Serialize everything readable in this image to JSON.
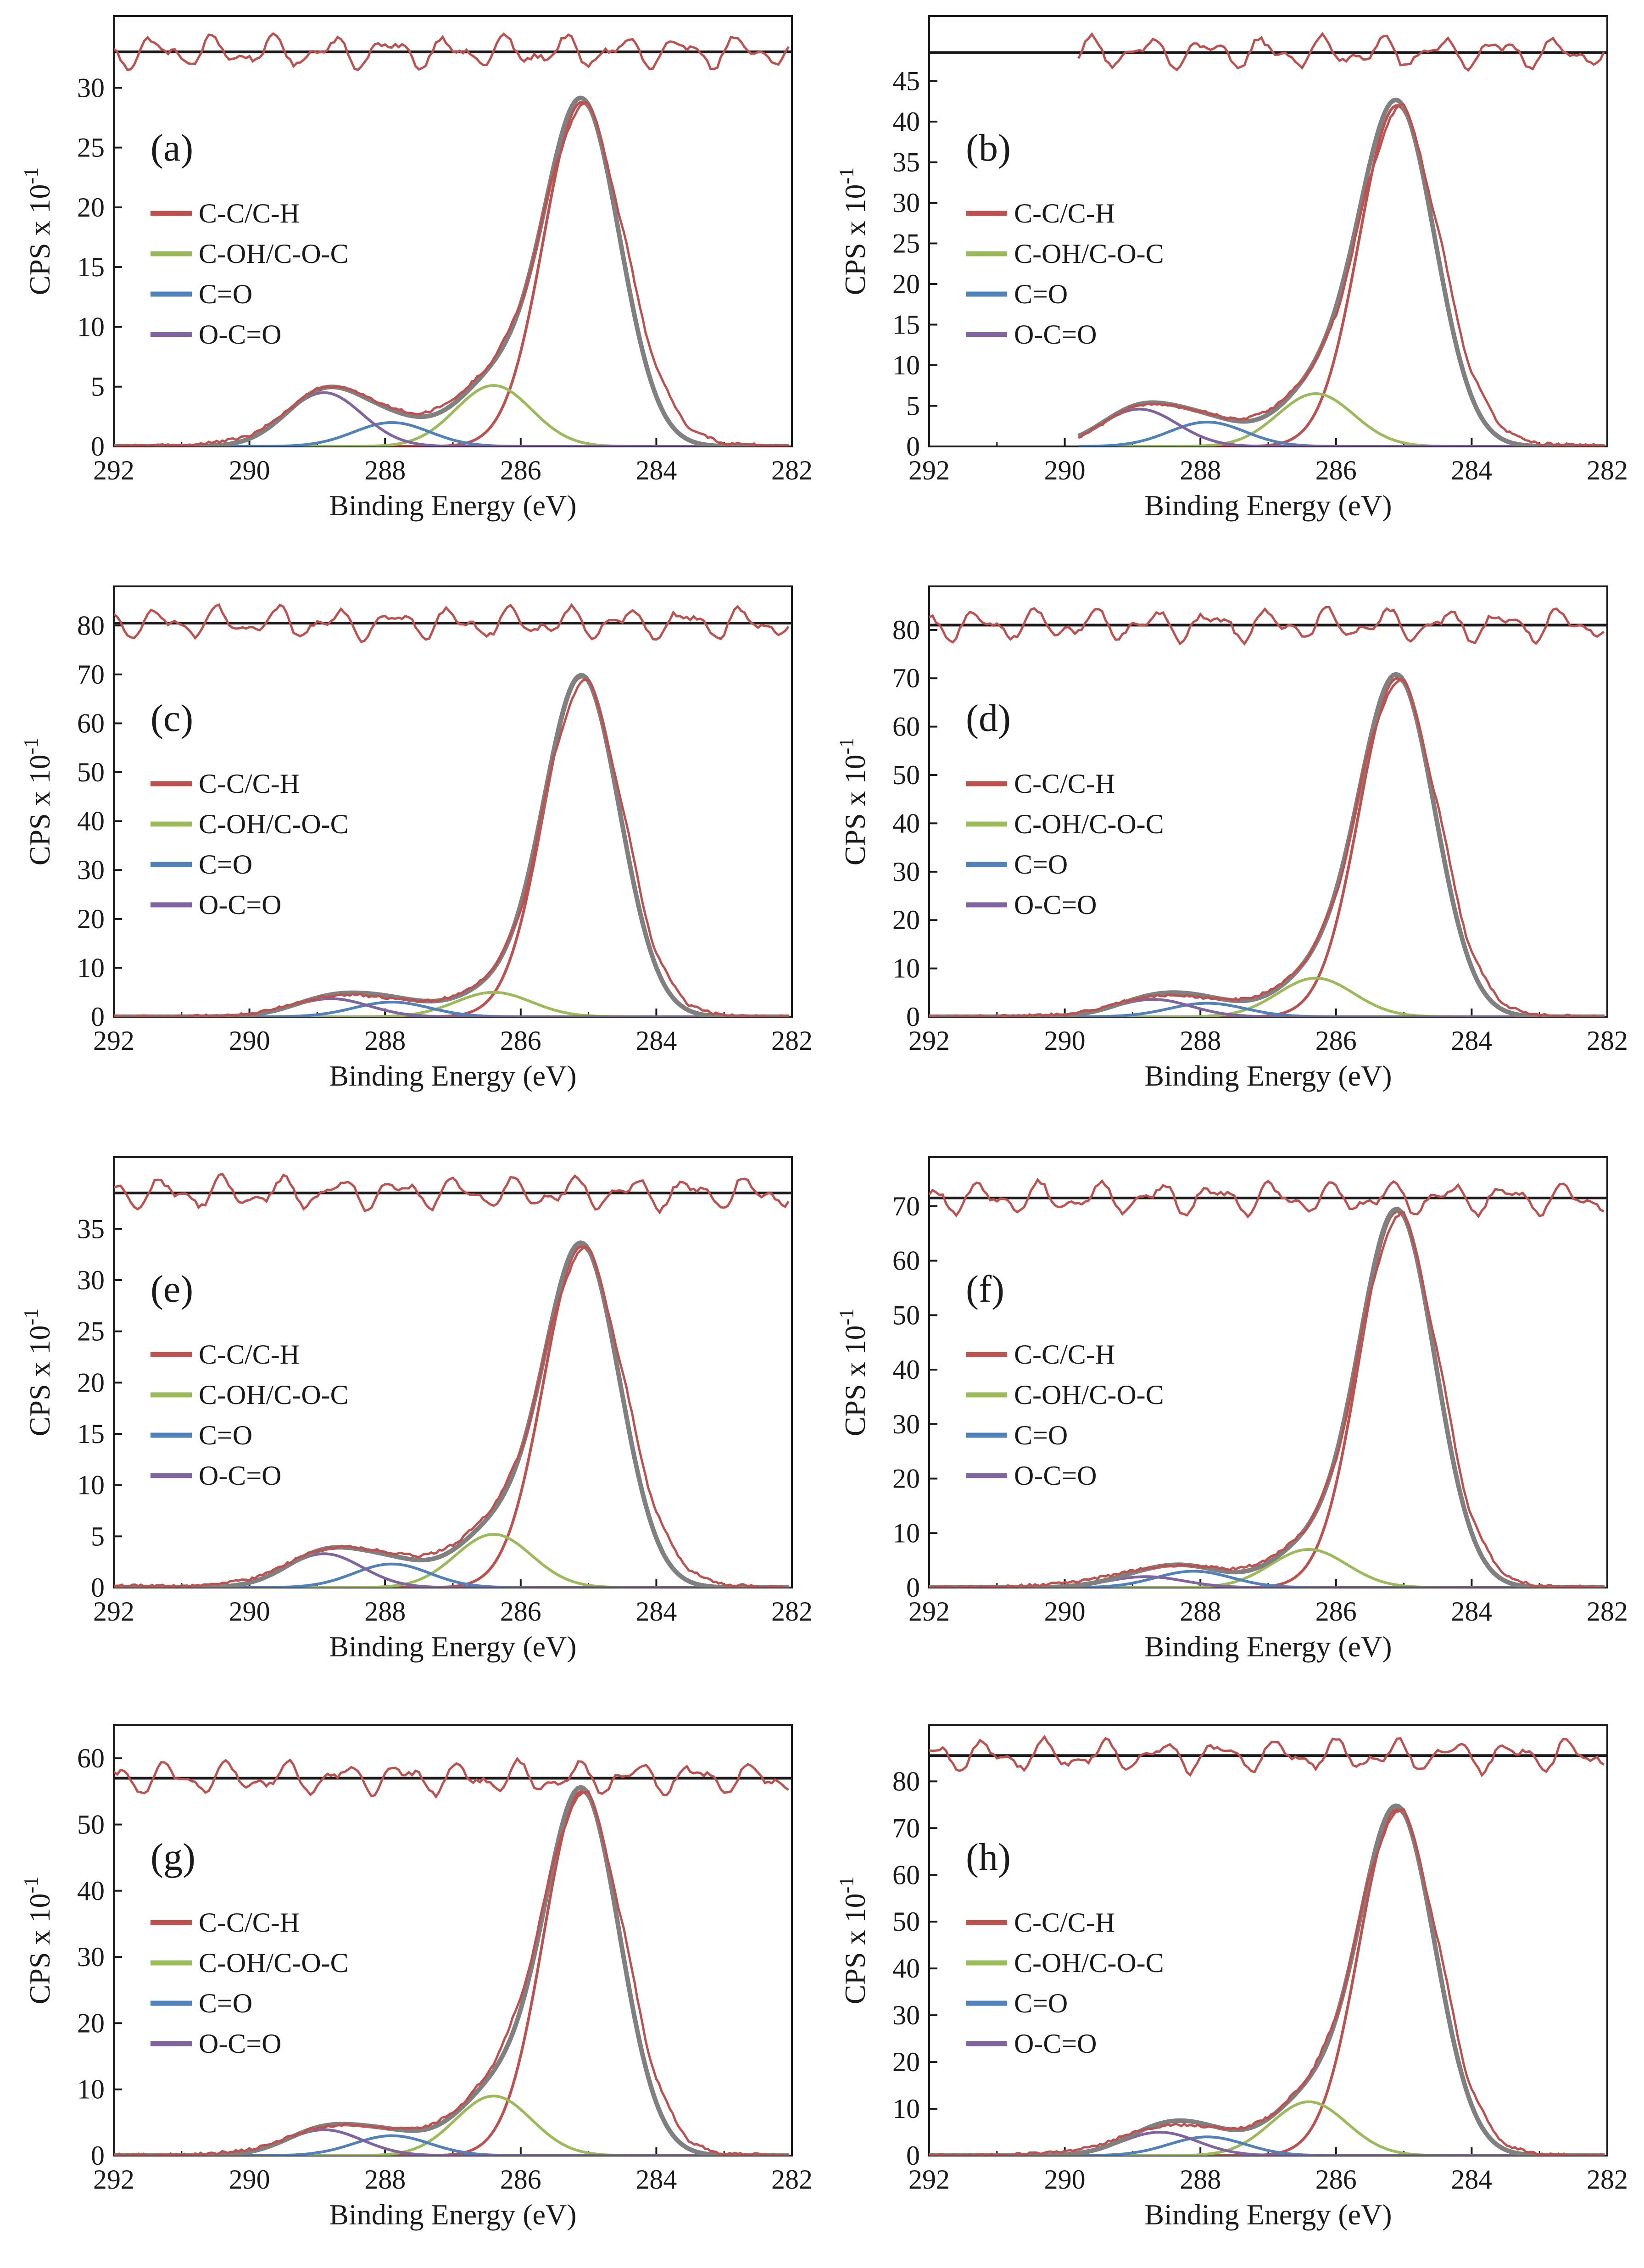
{
  "figure": {
    "xlabel": "Binding Energy (eV)",
    "ylabel_base": "CPS x 10",
    "ylabel_exp": "-1",
    "xlim": [
      292,
      282
    ],
    "xticks": [
      292,
      290,
      288,
      286,
      284,
      282
    ],
    "legend_entries": [
      "C-C/C-H",
      "C-OH/C-O-C",
      "C=O",
      "O-C=O"
    ],
    "colors": {
      "cc": "#c0504d",
      "coh": "#9bbb59",
      "co": "#4f81bd",
      "oco": "#8064a2",
      "envelope": "#808080",
      "data": "#c0504d",
      "axis": "#1a1a1a"
    }
  },
  "chart_data": [
    {
      "panel": "(a)",
      "type": "line",
      "title": "(a)",
      "xlabel": "Binding Energy (eV)",
      "ylabel": "CPS x 10^-1",
      "ylim": [
        0,
        36
      ],
      "yticks": [
        0,
        5,
        10,
        15,
        20,
        25,
        30
      ],
      "residual_level": 33.0,
      "x": [
        292,
        291,
        290,
        289.5,
        289,
        288.5,
        288,
        287.5,
        287,
        286.5,
        286,
        285.5,
        285,
        284.5,
        284,
        283.5,
        283,
        282
      ],
      "series": [
        {
          "name": "C-C/C-H",
          "peak_center": 285.1,
          "peak_height": 28.8
        },
        {
          "name": "C-OH/C-O-C",
          "peak_center": 286.4,
          "peak_height": 5.1
        },
        {
          "name": "C=O",
          "peak_center": 287.9,
          "peak_height": 2.0
        },
        {
          "name": "O-C=O",
          "peak_center": 288.9,
          "peak_height": 4.5
        },
        {
          "name": "Measured",
          "values": [
            0.1,
            0.2,
            1.2,
            3.0,
            4.9,
            5.0,
            3.6,
            3.0,
            4.4,
            6.8,
            12.0,
            22.4,
            28.9,
            21.0,
            9.6,
            2.8,
            0.6,
            0.0
          ]
        }
      ]
    },
    {
      "panel": "(b)",
      "type": "line",
      "title": "(b)",
      "xlabel": "Binding Energy (eV)",
      "ylabel": "CPS x 10^-1",
      "ylim": [
        0,
        53
      ],
      "yticks": [
        0,
        5,
        10,
        15,
        20,
        25,
        30,
        35,
        40,
        45
      ],
      "residual_level": 48.5,
      "x": [
        289.8,
        289.5,
        289,
        288.5,
        288,
        287.5,
        287,
        286.5,
        286,
        285.5,
        285,
        284.5,
        284,
        283.5,
        283,
        282
      ],
      "series": [
        {
          "name": "C-C/C-H",
          "peak_center": 285.1,
          "peak_height": 42.0
        },
        {
          "name": "C-OH/C-O-C",
          "peak_center": 286.3,
          "peak_height": 6.5
        },
        {
          "name": "C=O",
          "peak_center": 287.9,
          "peak_height": 3.0
        },
        {
          "name": "O-C=O",
          "peak_center": 288.9,
          "peak_height": 4.6
        },
        {
          "name": "Measured",
          "values": [
            1.0,
            2.5,
            4.8,
            5.0,
            4.4,
            3.6,
            5.0,
            8.0,
            15.0,
            31.0,
            42.3,
            31.0,
            13.0,
            3.5,
            0.7,
            0.2
          ]
        }
      ]
    },
    {
      "panel": "(c)",
      "type": "line",
      "title": "(c)",
      "xlabel": "Binding Energy (eV)",
      "ylabel": "CPS x 10^-1",
      "ylim": [
        0,
        88
      ],
      "yticks": [
        0,
        10,
        20,
        30,
        40,
        50,
        60,
        70,
        80
      ],
      "residual_level": 80.5,
      "x": [
        292,
        291,
        290,
        289.5,
        289,
        288.5,
        288,
        287.5,
        287,
        286.5,
        286,
        285.5,
        285,
        284.5,
        284,
        283.5,
        283,
        282
      ],
      "series": [
        {
          "name": "C-C/C-H",
          "peak_center": 285.1,
          "peak_height": 69.5
        },
        {
          "name": "C-OH/C-O-C",
          "peak_center": 286.4,
          "peak_height": 5.0
        },
        {
          "name": "C=O",
          "peak_center": 287.9,
          "peak_height": 3.0
        },
        {
          "name": "O-C=O",
          "peak_center": 288.8,
          "peak_height": 3.7
        },
        {
          "name": "Measured",
          "values": [
            0.0,
            0.1,
            0.9,
            2.6,
            3.7,
            4.0,
            3.4,
            3.0,
            4.5,
            8.5,
            20.0,
            52.0,
            69.6,
            48.0,
            16.5,
            3.6,
            0.6,
            0.0
          ]
        }
      ]
    },
    {
      "panel": "(d)",
      "type": "line",
      "title": "(d)",
      "xlabel": "Binding Energy (eV)",
      "ylabel": "CPS x 10^-1",
      "ylim": [
        0,
        89
      ],
      "yticks": [
        0,
        10,
        20,
        30,
        40,
        50,
        60,
        70,
        80
      ],
      "residual_level": 81.0,
      "x": [
        292,
        291,
        290,
        289.5,
        289,
        288.5,
        288,
        287.5,
        287,
        286.5,
        286,
        285.5,
        285,
        284.5,
        284,
        283.5,
        283,
        282
      ],
      "series": [
        {
          "name": "C-C/C-H",
          "peak_center": 285.1,
          "peak_height": 70.0
        },
        {
          "name": "C-OH/C-O-C",
          "peak_center": 286.3,
          "peak_height": 8.0
        },
        {
          "name": "C=O",
          "peak_center": 287.9,
          "peak_height": 2.8
        },
        {
          "name": "O-C=O",
          "peak_center": 288.7,
          "peak_height": 3.6
        },
        {
          "name": "Measured",
          "values": [
            0.0,
            0.2,
            0.8,
            2.2,
            3.6,
            3.9,
            3.4,
            3.8,
            5.8,
            10.5,
            24.0,
            55.0,
            70.2,
            49.0,
            17.0,
            3.7,
            0.7,
            0.0
          ]
        }
      ]
    },
    {
      "panel": "(e)",
      "type": "line",
      "title": "(e)",
      "xlabel": "Binding Energy (eV)",
      "ylabel": "CPS x 10^-1",
      "ylim": [
        0,
        42
      ],
      "yticks": [
        0,
        5,
        10,
        15,
        20,
        25,
        30,
        35
      ],
      "residual_level": 38.5,
      "x": [
        292,
        291,
        290,
        289.5,
        289,
        288.5,
        288,
        287.5,
        287,
        286.5,
        286,
        285.5,
        285,
        284.5,
        284,
        283.5,
        283,
        282
      ],
      "series": [
        {
          "name": "C-C/C-H",
          "peak_center": 285.1,
          "peak_height": 33.3
        },
        {
          "name": "C-OH/C-O-C",
          "peak_center": 286.4,
          "peak_height": 5.2
        },
        {
          "name": "C=O",
          "peak_center": 287.9,
          "peak_height": 2.3
        },
        {
          "name": "O-C=O",
          "peak_center": 288.9,
          "peak_height": 3.3
        },
        {
          "name": "Measured",
          "values": [
            0.4,
            0.3,
            1.2,
            2.6,
            3.6,
            4.1,
            3.8,
            3.6,
            4.8,
            7.6,
            13.5,
            26.0,
            33.4,
            24.0,
            10.5,
            3.0,
            0.6,
            0.0
          ]
        }
      ]
    },
    {
      "panel": "(f)",
      "type": "line",
      "title": "(f)",
      "xlabel": "Binding Energy (eV)",
      "ylabel": "CPS x 10^-1",
      "ylim": [
        0,
        79
      ],
      "yticks": [
        0,
        10,
        20,
        30,
        40,
        50,
        60,
        70
      ],
      "residual_level": 71.5,
      "x": [
        292,
        291,
        290,
        289.5,
        289,
        288.5,
        288,
        287.5,
        287,
        286.5,
        286,
        285.5,
        285,
        284.5,
        284,
        283.5,
        283,
        282
      ],
      "series": [
        {
          "name": "C-C/C-H",
          "peak_center": 285.1,
          "peak_height": 69.0
        },
        {
          "name": "C-OH/C-O-C",
          "peak_center": 286.4,
          "peak_height": 7.0
        },
        {
          "name": "C=O",
          "peak_center": 288.1,
          "peak_height": 3.0
        },
        {
          "name": "O-C=O",
          "peak_center": 288.8,
          "peak_height": 2.0
        },
        {
          "name": "Measured",
          "values": [
            0.1,
            0.3,
            1.5,
            2.8,
            3.6,
            4.0,
            4.0,
            4.2,
            6.0,
            10.0,
            22.0,
            52.0,
            69.1,
            48.0,
            16.5,
            3.5,
            0.6,
            0.1
          ]
        }
      ]
    },
    {
      "panel": "(g)",
      "type": "line",
      "title": "(g)",
      "xlabel": "Binding Energy (eV)",
      "ylabel": "CPS x 10^-1",
      "ylim": [
        0,
        65
      ],
      "yticks": [
        0,
        10,
        20,
        30,
        40,
        50,
        60
      ],
      "residual_level": 57.0,
      "x": [
        292,
        291,
        290,
        289.5,
        289,
        288.5,
        288,
        287.5,
        287,
        286.5,
        286,
        285.5,
        285,
        284.5,
        284,
        283.5,
        283,
        282
      ],
      "series": [
        {
          "name": "C-C/C-H",
          "peak_center": 285.1,
          "peak_height": 55.0
        },
        {
          "name": "C-OH/C-O-C",
          "peak_center": 286.4,
          "peak_height": 9.0
        },
        {
          "name": "C=O",
          "peak_center": 287.9,
          "peak_height": 3.0
        },
        {
          "name": "O-C=O",
          "peak_center": 288.9,
          "peak_height": 3.9
        },
        {
          "name": "Measured",
          "values": [
            0.2,
            0.3,
            1.3,
            2.8,
            4.2,
            4.6,
            4.0,
            4.5,
            7.0,
            13.0,
            26.0,
            45.0,
            55.2,
            40.0,
            16.0,
            3.5,
            0.6,
            0.0
          ]
        }
      ]
    },
    {
      "panel": "(h)",
      "type": "line",
      "title": "(h)",
      "xlabel": "Binding Energy (eV)",
      "ylabel": "CPS x 10^-1",
      "ylim": [
        0,
        92
      ],
      "yticks": [
        0,
        10,
        20,
        30,
        40,
        50,
        60,
        70,
        80
      ],
      "residual_level": 85.5,
      "x": [
        292,
        291,
        290,
        289.5,
        289,
        288.5,
        288,
        287.5,
        287,
        286.5,
        286,
        285.5,
        285,
        284.5,
        284,
        283.5,
        283,
        282
      ],
      "series": [
        {
          "name": "C-C/C-H",
          "peak_center": 285.1,
          "peak_height": 74.0
        },
        {
          "name": "C-OH/C-O-C",
          "peak_center": 286.4,
          "peak_height": 11.5
        },
        {
          "name": "C=O",
          "peak_center": 287.9,
          "peak_height": 4.0
        },
        {
          "name": "O-C=O",
          "peak_center": 288.6,
          "peak_height": 5.0
        },
        {
          "name": "Measured",
          "values": [
            0.1,
            0.3,
            1.5,
            3.5,
            5.3,
            5.6,
            5.4,
            6.0,
            8.5,
            15.0,
            30.0,
            60.0,
            74.3,
            52.0,
            18.0,
            3.7,
            0.6,
            0.0
          ]
        }
      ]
    }
  ]
}
